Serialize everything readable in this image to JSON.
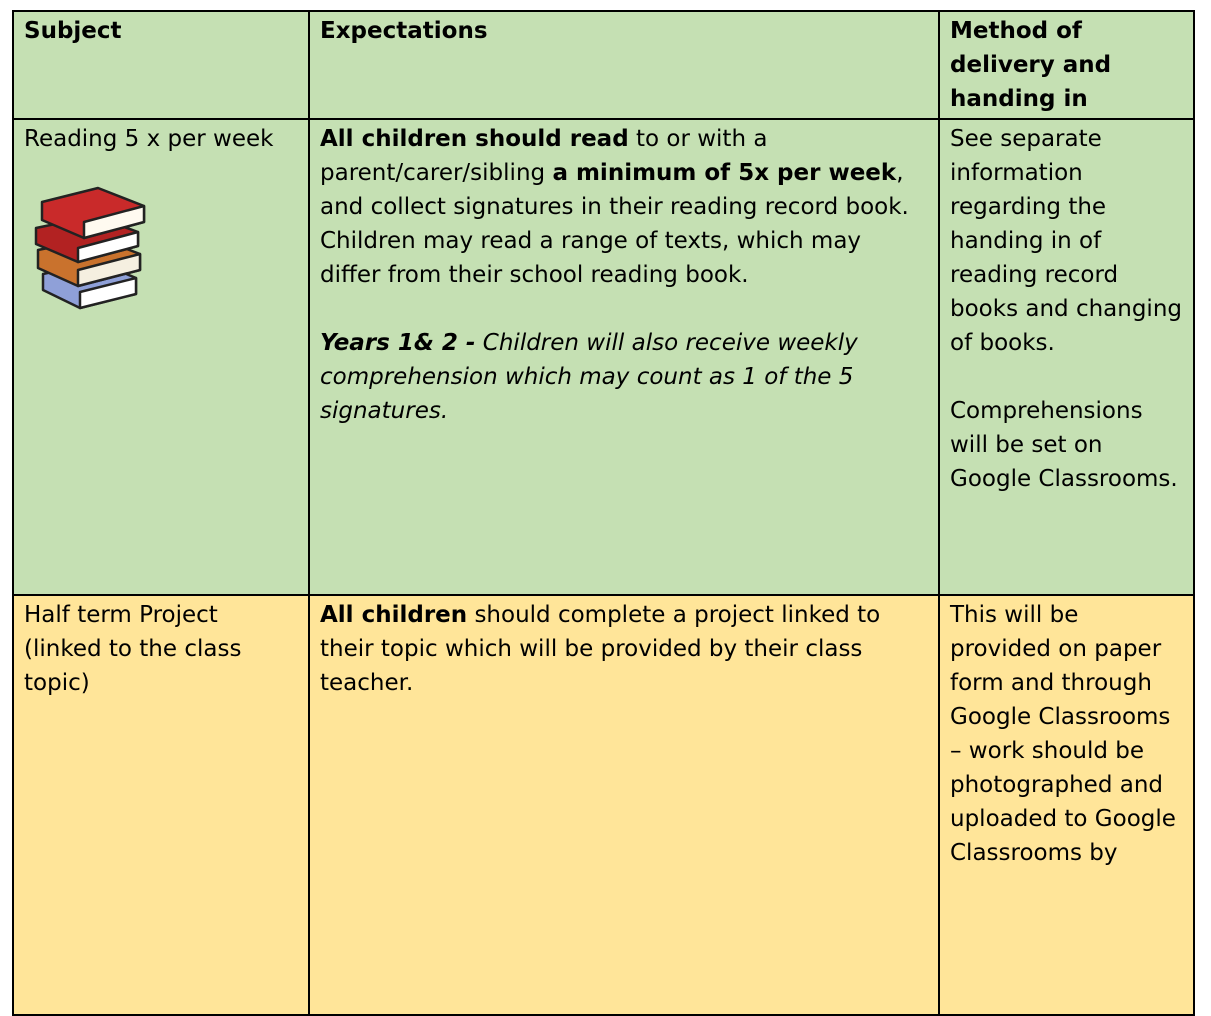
{
  "table": {
    "header": [
      "Subject",
      "Expectations",
      "Method of delivery and handing in"
    ],
    "rows": [
      [
        [
          [
            {
              "text": "Reading 5 x per week"
            }
          ]
        ],
        [
          [
            {
              "text": "All children should read",
              "bold": true
            },
            {
              "text": " to or with a parent/carer/sibling "
            },
            {
              "text": "a minimum of 5x per week",
              "bold": true
            },
            {
              "text": ", and collect signatures in their reading record book."
            }
          ],
          [
            {
              "text": "Children may read a range of texts, which may differ from their school reading book."
            }
          ],
          [
            {
              "text": "Years 1& 2 -",
              "bold": true,
              "italic": true
            },
            {
              "text": " Children will also receive weekly comprehension which may count as 1 of the 5 signatures.",
              "italic": true
            }
          ]
        ],
        [
          [
            {
              "text": "See separate information regarding the handing in of reading record books and changing of books."
            }
          ],
          [
            {
              "text": "Comprehensions will be set on Google Classrooms."
            }
          ]
        ]
      ],
      [
        [
          [
            {
              "text": "Half term Project (linked to the class topic)"
            }
          ]
        ],
        [
          [
            {
              "text": "All children",
              "bold": true
            },
            {
              "text": " should complete a project linked to their topic which will be provided by their class teacher."
            }
          ]
        ],
        [
          [
            {
              "text": "This will be provided on paper form and through Google Classrooms – work should be photographed and uploaded to Google Classrooms by"
            }
          ]
        ]
      ]
    ]
  }
}
